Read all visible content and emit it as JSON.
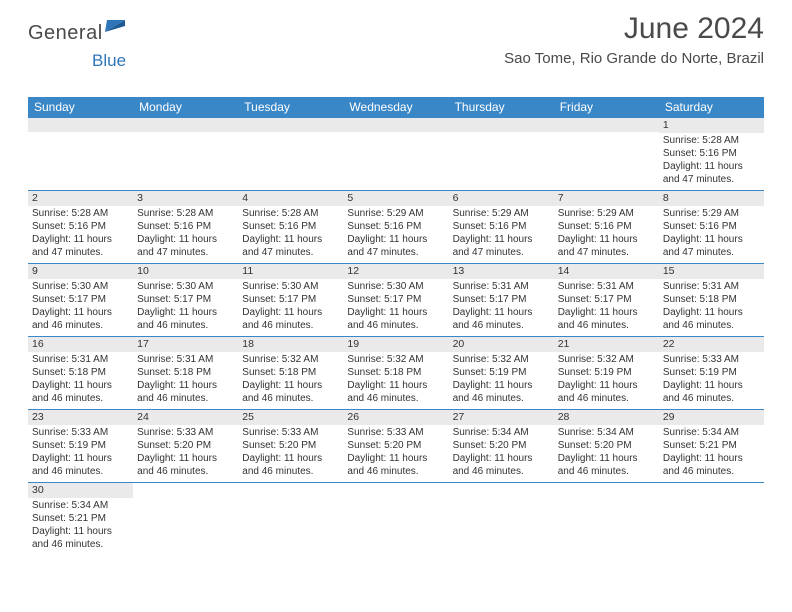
{
  "brand": {
    "word1": "General",
    "word2": "Blue"
  },
  "title": "June 2024",
  "location": "Sao Tome, Rio Grande do Norte, Brazil",
  "colors": {
    "header_bg": "#3a87c8",
    "daynum_bg": "#eaeaea",
    "rule": "#3a87c8"
  },
  "dayHeaders": [
    "Sunday",
    "Monday",
    "Tuesday",
    "Wednesday",
    "Thursday",
    "Friday",
    "Saturday"
  ],
  "weeks": [
    [
      null,
      null,
      null,
      null,
      null,
      null,
      {
        "n": "1",
        "sr": "5:28 AM",
        "ss": "5:16 PM",
        "dl": "11 hours and 47 minutes."
      }
    ],
    [
      {
        "n": "2",
        "sr": "5:28 AM",
        "ss": "5:16 PM",
        "dl": "11 hours and 47 minutes."
      },
      {
        "n": "3",
        "sr": "5:28 AM",
        "ss": "5:16 PM",
        "dl": "11 hours and 47 minutes."
      },
      {
        "n": "4",
        "sr": "5:28 AM",
        "ss": "5:16 PM",
        "dl": "11 hours and 47 minutes."
      },
      {
        "n": "5",
        "sr": "5:29 AM",
        "ss": "5:16 PM",
        "dl": "11 hours and 47 minutes."
      },
      {
        "n": "6",
        "sr": "5:29 AM",
        "ss": "5:16 PM",
        "dl": "11 hours and 47 minutes."
      },
      {
        "n": "7",
        "sr": "5:29 AM",
        "ss": "5:16 PM",
        "dl": "11 hours and 47 minutes."
      },
      {
        "n": "8",
        "sr": "5:29 AM",
        "ss": "5:16 PM",
        "dl": "11 hours and 47 minutes."
      }
    ],
    [
      {
        "n": "9",
        "sr": "5:30 AM",
        "ss": "5:17 PM",
        "dl": "11 hours and 46 minutes."
      },
      {
        "n": "10",
        "sr": "5:30 AM",
        "ss": "5:17 PM",
        "dl": "11 hours and 46 minutes."
      },
      {
        "n": "11",
        "sr": "5:30 AM",
        "ss": "5:17 PM",
        "dl": "11 hours and 46 minutes."
      },
      {
        "n": "12",
        "sr": "5:30 AM",
        "ss": "5:17 PM",
        "dl": "11 hours and 46 minutes."
      },
      {
        "n": "13",
        "sr": "5:31 AM",
        "ss": "5:17 PM",
        "dl": "11 hours and 46 minutes."
      },
      {
        "n": "14",
        "sr": "5:31 AM",
        "ss": "5:17 PM",
        "dl": "11 hours and 46 minutes."
      },
      {
        "n": "15",
        "sr": "5:31 AM",
        "ss": "5:18 PM",
        "dl": "11 hours and 46 minutes."
      }
    ],
    [
      {
        "n": "16",
        "sr": "5:31 AM",
        "ss": "5:18 PM",
        "dl": "11 hours and 46 minutes."
      },
      {
        "n": "17",
        "sr": "5:31 AM",
        "ss": "5:18 PM",
        "dl": "11 hours and 46 minutes."
      },
      {
        "n": "18",
        "sr": "5:32 AM",
        "ss": "5:18 PM",
        "dl": "11 hours and 46 minutes."
      },
      {
        "n": "19",
        "sr": "5:32 AM",
        "ss": "5:18 PM",
        "dl": "11 hours and 46 minutes."
      },
      {
        "n": "20",
        "sr": "5:32 AM",
        "ss": "5:19 PM",
        "dl": "11 hours and 46 minutes."
      },
      {
        "n": "21",
        "sr": "5:32 AM",
        "ss": "5:19 PM",
        "dl": "11 hours and 46 minutes."
      },
      {
        "n": "22",
        "sr": "5:33 AM",
        "ss": "5:19 PM",
        "dl": "11 hours and 46 minutes."
      }
    ],
    [
      {
        "n": "23",
        "sr": "5:33 AM",
        "ss": "5:19 PM",
        "dl": "11 hours and 46 minutes."
      },
      {
        "n": "24",
        "sr": "5:33 AM",
        "ss": "5:20 PM",
        "dl": "11 hours and 46 minutes."
      },
      {
        "n": "25",
        "sr": "5:33 AM",
        "ss": "5:20 PM",
        "dl": "11 hours and 46 minutes."
      },
      {
        "n": "26",
        "sr": "5:33 AM",
        "ss": "5:20 PM",
        "dl": "11 hours and 46 minutes."
      },
      {
        "n": "27",
        "sr": "5:34 AM",
        "ss": "5:20 PM",
        "dl": "11 hours and 46 minutes."
      },
      {
        "n": "28",
        "sr": "5:34 AM",
        "ss": "5:20 PM",
        "dl": "11 hours and 46 minutes."
      },
      {
        "n": "29",
        "sr": "5:34 AM",
        "ss": "5:21 PM",
        "dl": "11 hours and 46 minutes."
      }
    ],
    [
      {
        "n": "30",
        "sr": "5:34 AM",
        "ss": "5:21 PM",
        "dl": "11 hours and 46 minutes."
      },
      null,
      null,
      null,
      null,
      null,
      null
    ]
  ],
  "labels": {
    "sunrise": "Sunrise: ",
    "sunset": "Sunset: ",
    "daylight": "Daylight: "
  }
}
